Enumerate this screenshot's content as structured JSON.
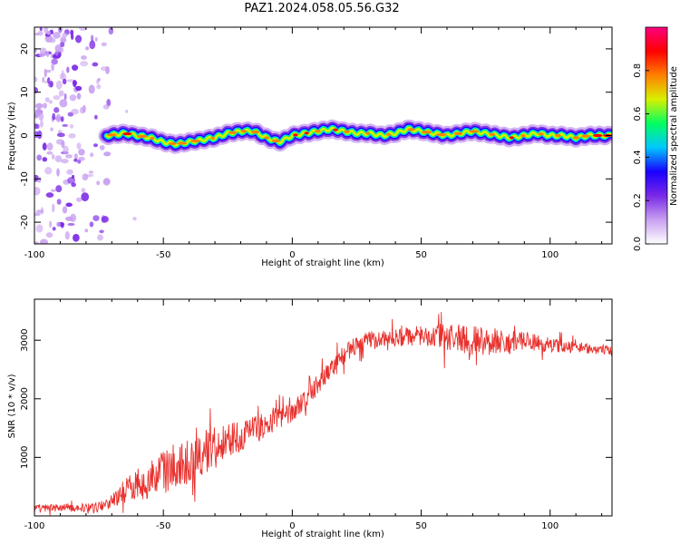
{
  "title": "PAZ1.2024.058.05.56.G32",
  "chart_data": [
    {
      "type": "heatmap",
      "xlabel": "Height of straight line (km)",
      "ylabel": "Frequency (Hz)",
      "xlim": [
        -100,
        124
      ],
      "ylim": [
        -25,
        25
      ],
      "xticks": [
        -100,
        -50,
        0,
        50,
        100
      ],
      "yticks": [
        -20,
        -10,
        0,
        10,
        20
      ],
      "colorbar": {
        "label": "Normalized spectral amplitude",
        "range": [
          0,
          1
        ],
        "ticks": [
          "0.0",
          "0.2",
          "0.4",
          "0.6",
          "0.8"
        ],
        "colors": [
          "#ffffff",
          "#c8a0f0",
          "#7a28e6",
          "#1a00ff",
          "#00c8ff",
          "#00ff60",
          "#d8f000",
          "#ff8000",
          "#ff0000",
          "#ff0080"
        ]
      },
      "ridge_frequency_hz": {
        "x": [
          -72,
          -65,
          -60,
          -55,
          -50,
          -45,
          -40,
          -35,
          -30,
          -25,
          -20,
          -15,
          -10,
          -5,
          0,
          5,
          10,
          15,
          20,
          25,
          30,
          35,
          40,
          45,
          50,
          55,
          60,
          65,
          70,
          75,
          80,
          85,
          90,
          95,
          100,
          105,
          110,
          115,
          120,
          124
        ],
        "y": [
          0,
          0.5,
          0,
          -0.5,
          -1.5,
          -2,
          -1.5,
          -1,
          -0.5,
          0.5,
          1,
          1,
          -0.5,
          -1.5,
          0,
          0.5,
          1,
          1.5,
          1,
          0.5,
          0.5,
          0,
          0.5,
          1.5,
          1,
          0.5,
          0,
          0.5,
          1,
          0.5,
          0,
          -0.5,
          0,
          0.5,
          0,
          0,
          -0.5,
          0,
          0,
          0
        ]
      },
      "noise_region_x": [
        -100,
        -60
      ]
    },
    {
      "type": "line",
      "xlabel": "Height of straight line (km)",
      "ylabel": "SNR (10 * v/v)",
      "xlim": [
        -100,
        124
      ],
      "ylim": [
        0,
        3700
      ],
      "xticks": [
        -100,
        -50,
        0,
        50,
        100
      ],
      "yticks": [
        1000,
        2000,
        3000
      ],
      "series": [
        {
          "color": "#e8302c",
          "x": [
            -100,
            -90,
            -80,
            -75,
            -70,
            -65,
            -60,
            -55,
            -50,
            -45,
            -40,
            -35,
            -30,
            -25,
            -20,
            -15,
            -10,
            -5,
            0,
            5,
            10,
            15,
            20,
            25,
            30,
            35,
            40,
            45,
            50,
            55,
            60,
            65,
            70,
            75,
            80,
            85,
            90,
            95,
            100,
            105,
            110,
            115,
            120,
            124
          ],
          "y": [
            120,
            140,
            140,
            160,
            250,
            420,
            560,
            620,
            760,
            840,
            940,
            1050,
            1220,
            1300,
            1380,
            1460,
            1560,
            1660,
            1780,
            1990,
            2240,
            2520,
            2760,
            2920,
            3000,
            3020,
            3050,
            3060,
            3080,
            3060,
            3040,
            3030,
            3000,
            2980,
            2980,
            2960,
            2980,
            2950,
            2920,
            2900,
            2880,
            2860,
            2840,
            2800
          ],
          "noise_amplitude": [
            70,
            70,
            70,
            80,
            120,
            200,
            280,
            330,
            380,
            400,
            400,
            380,
            360,
            300,
            260,
            240,
            220,
            200,
            180,
            180,
            180,
            170,
            160,
            150,
            150,
            150,
            150,
            160,
            170,
            200,
            260,
            300,
            260,
            240,
            220,
            200,
            180,
            150,
            120,
            110,
            100,
            90,
            90,
            90
          ]
        }
      ]
    }
  ]
}
